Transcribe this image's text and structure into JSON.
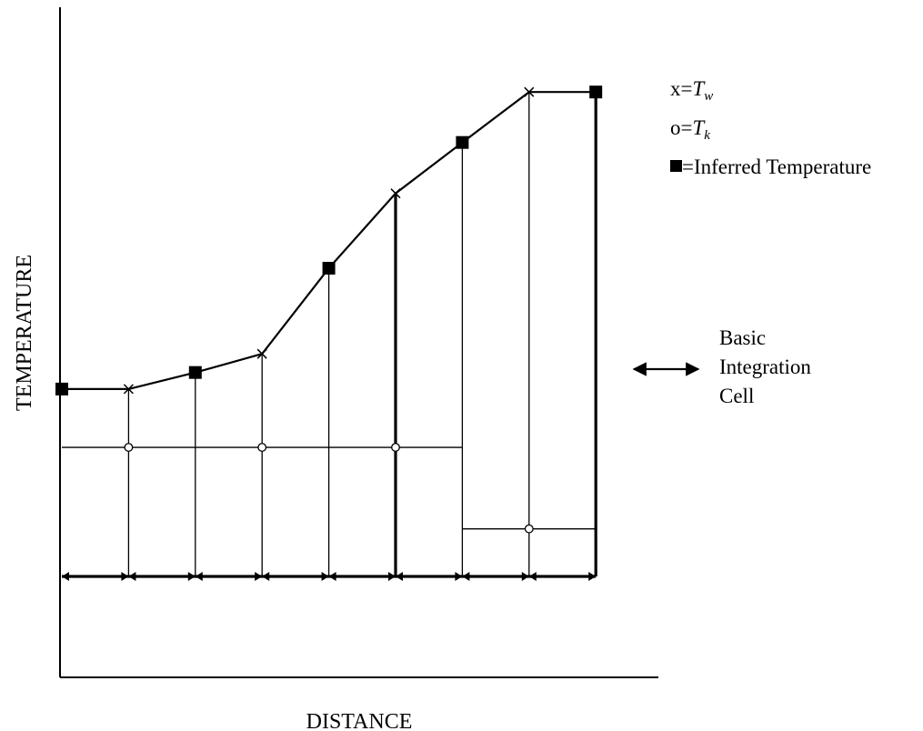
{
  "axes": {
    "x_label": "DISTANCE",
    "y_label": "TEMPERATURE"
  },
  "legend": {
    "tw_prefix": "x=",
    "tw_symbol": "T",
    "tw_sub": "w",
    "tk_prefix": "o=",
    "tk_symbol": "T",
    "tk_sub": "k",
    "inferred_text": "=Inferred Temperature"
  },
  "integration_cell": {
    "line1": "Basic",
    "line2": "Integration",
    "line3": "Cell"
  },
  "series": {
    "profile_points": [
      {
        "kind": "inferred",
        "t": 0.0,
        "temp": 0.453
      },
      {
        "kind": "tw",
        "t": 1.0,
        "temp": 0.453
      },
      {
        "kind": "inferred",
        "t": 2.0,
        "temp": 0.493
      },
      {
        "kind": "tw",
        "t": 3.0,
        "temp": 0.538
      },
      {
        "kind": "inferred",
        "t": 4.0,
        "temp": 0.745
      },
      {
        "kind": "tw",
        "t": 5.0,
        "temp": 0.926
      },
      {
        "kind": "inferred",
        "t": 6.0,
        "temp": 1.049
      },
      {
        "kind": "tw",
        "t": 7.0,
        "temp": 1.171
      },
      {
        "kind": "inferred",
        "t": 8.0,
        "temp": 1.171
      }
    ],
    "tk_levels": [
      {
        "t_start": 0.0,
        "t_end": 6.0,
        "temp": 0.312
      },
      {
        "t_start": 6.0,
        "t_end": 8.0,
        "temp": 0.115
      }
    ],
    "tk_markers": [
      1.0,
      3.0,
      5.0,
      7.0
    ]
  }
}
